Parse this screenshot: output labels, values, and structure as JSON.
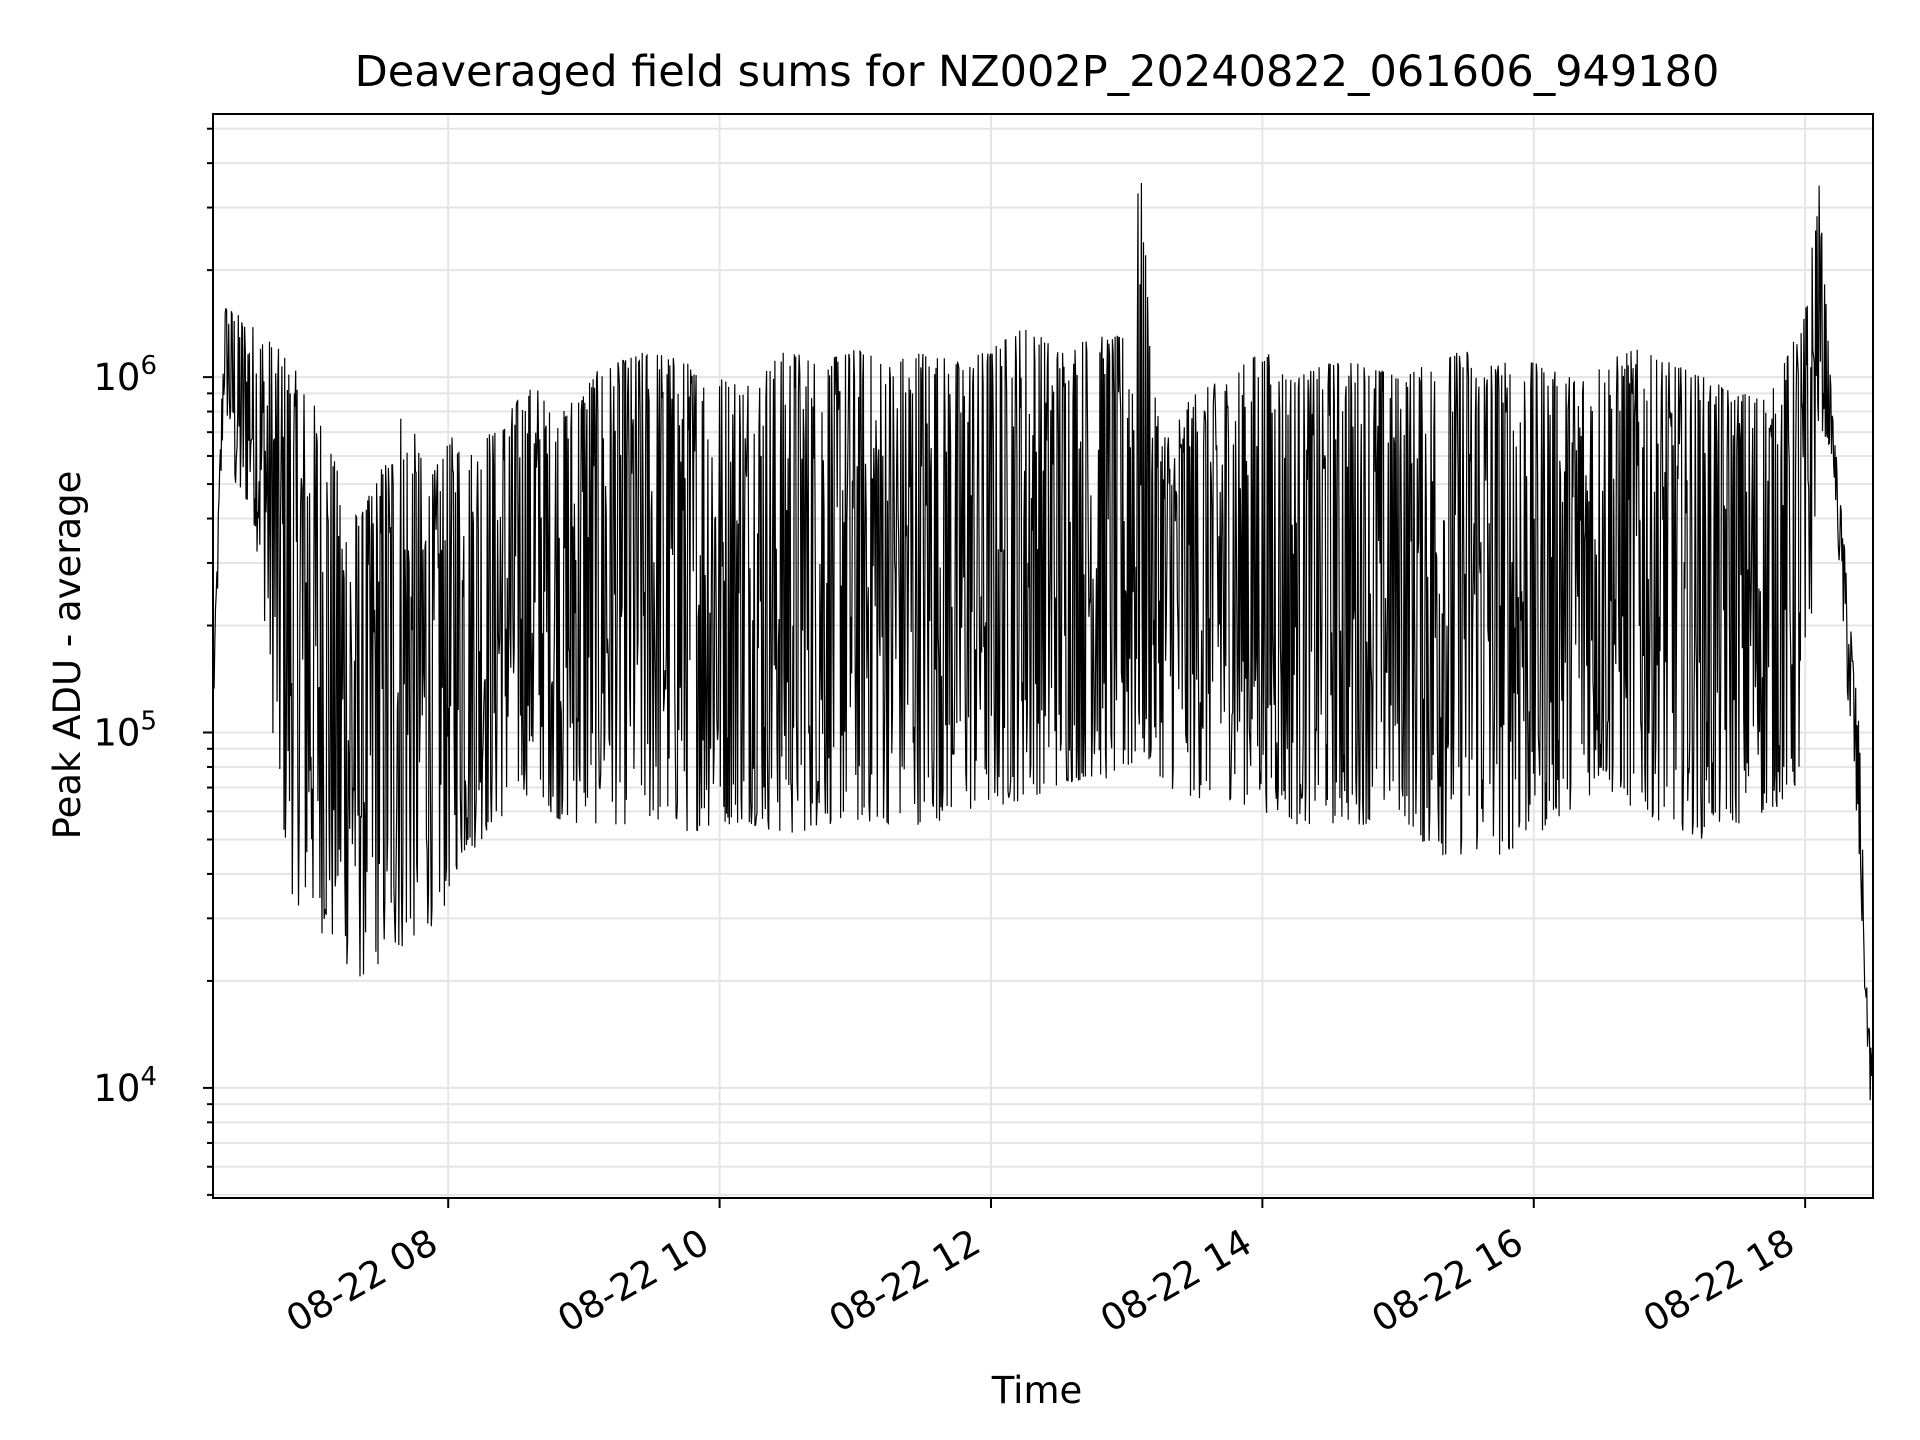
{
  "chart_data": {
    "type": "line",
    "title": "Deaveraged field sums for NZ002P_20240822_061606_949180",
    "xlabel": "Time",
    "ylabel": "Peak ADU - average",
    "yscale": "log",
    "grid": true,
    "x_ticks": [
      {
        "value": 8,
        "label": "08-22 08"
      },
      {
        "value": 10,
        "label": "08-22 10"
      },
      {
        "value": 12,
        "label": "08-22 12"
      },
      {
        "value": 14,
        "label": "08-22 14"
      },
      {
        "value": 16,
        "label": "08-22 16"
      },
      {
        "value": 18,
        "label": "08-22 18"
      }
    ],
    "y_ticks": [
      {
        "value": 10000,
        "base": "10",
        "exp": "4"
      },
      {
        "value": 100000,
        "base": "10",
        "exp": "5"
      },
      {
        "value": 1000000,
        "base": "10",
        "exp": "6"
      }
    ],
    "xlim": [
      "08-22 06:16",
      "08-22 18:30"
    ],
    "ylim": [
      4900,
      5500000
    ],
    "series": [
      {
        "color": "#000000",
        "x_unit": "hour of day (08-22)",
        "x": [
          6.27,
          6.35,
          6.45,
          6.55,
          6.65,
          6.75,
          6.85,
          6.95,
          7.05,
          7.15,
          7.25,
          7.35,
          7.45,
          7.55,
          7.65,
          7.75,
          7.85,
          7.95,
          8.05,
          8.15,
          8.25,
          8.35,
          8.45,
          8.55,
          8.65,
          8.75,
          8.85,
          9.0,
          9.25,
          9.5,
          9.75,
          10.0,
          10.25,
          10.5,
          10.75,
          11.0,
          11.25,
          11.5,
          11.75,
          12.0,
          12.25,
          12.5,
          12.75,
          13.0,
          13.1,
          13.2,
          13.3,
          13.5,
          13.75,
          14.0,
          14.25,
          14.5,
          14.75,
          15.0,
          15.25,
          15.5,
          15.75,
          16.0,
          16.25,
          16.5,
          16.75,
          17.0,
          17.25,
          17.5,
          17.75,
          18.0,
          18.1,
          18.2,
          18.3,
          18.4,
          18.45,
          18.5
        ],
        "low": [
          110000,
          900000,
          400000,
          450000,
          200000,
          60000,
          35000,
          30000,
          28000,
          24000,
          22000,
          20000,
          22000,
          22000,
          24000,
          26000,
          28000,
          30000,
          40000,
          45000,
          50000,
          55000,
          60000,
          65000,
          70000,
          60000,
          55000,
          55000,
          55000,
          55000,
          52000,
          55000,
          55000,
          50000,
          55000,
          55000,
          55000,
          55000,
          58000,
          60000,
          65000,
          70000,
          75000,
          70000,
          80000,
          80000,
          70000,
          65000,
          65000,
          60000,
          55000,
          55000,
          55000,
          60000,
          45000,
          45000,
          45000,
          50000,
          60000,
          70000,
          60000,
          55000,
          50000,
          55000,
          60000,
          70000,
          750000,
          600000,
          150000,
          40000,
          15000,
          6500
        ],
        "high": [
          140000,
          1600000,
          1500000,
          1400000,
          1300000,
          1200000,
          1100000,
          900000,
          800000,
          600000,
          450000,
          400000,
          500000,
          600000,
          800000,
          700000,
          500000,
          600000,
          700000,
          600000,
          700000,
          700000,
          800000,
          900000,
          950000,
          800000,
          800000,
          1000000,
          1100000,
          1200000,
          1100000,
          1000000,
          1000000,
          1200000,
          1100000,
          1200000,
          1100000,
          1200000,
          1100000,
          1200000,
          1400000,
          1200000,
          1300000,
          1300000,
          4000000,
          900000,
          700000,
          900000,
          1000000,
          1200000,
          1000000,
          1100000,
          1100000,
          1000000,
          1100000,
          1200000,
          1100000,
          1100000,
          1000000,
          1100000,
          1200000,
          1100000,
          1000000,
          900000,
          900000,
          1500000,
          3600000,
          800000,
          300000,
          100000,
          20000,
          12000
        ]
      }
    ]
  }
}
